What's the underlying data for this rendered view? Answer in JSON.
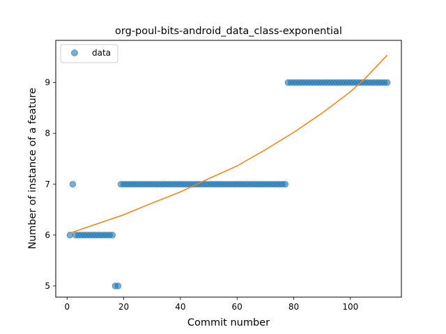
{
  "chart_data": {
    "type": "scatter",
    "title": "org-poul-bits-android_data_class-exponential",
    "xlabel": "Commit number",
    "ylabel": "Number of instance of a feature",
    "xlim": [
      -4,
      118
    ],
    "ylim": [
      4.78,
      9.83
    ],
    "xticks": [
      0,
      20,
      40,
      60,
      80,
      100
    ],
    "yticks": [
      5,
      6,
      7,
      8,
      9
    ],
    "legend": {
      "position": "top-left",
      "entries": [
        {
          "label": "data",
          "color": "#1f77b4",
          "marker": "circle"
        }
      ]
    },
    "series": [
      {
        "name": "data",
        "kind": "scatter",
        "color": "#1f77b4",
        "points": [
          [
            1,
            6
          ],
          [
            2,
            7
          ],
          [
            3,
            6
          ],
          [
            4,
            6
          ],
          [
            5,
            6
          ],
          [
            6,
            6
          ],
          [
            7,
            6
          ],
          [
            8,
            6
          ],
          [
            9,
            6
          ],
          [
            10,
            6
          ],
          [
            11,
            6
          ],
          [
            12,
            6
          ],
          [
            13,
            6
          ],
          [
            14,
            6
          ],
          [
            15,
            6
          ],
          [
            16,
            6
          ],
          [
            17,
            5
          ],
          [
            18,
            5
          ],
          [
            19,
            7
          ],
          [
            20,
            7
          ],
          [
            21,
            7
          ],
          [
            22,
            7
          ],
          [
            23,
            7
          ],
          [
            24,
            7
          ],
          [
            25,
            7
          ],
          [
            26,
            7
          ],
          [
            27,
            7
          ],
          [
            28,
            7
          ],
          [
            29,
            7
          ],
          [
            30,
            7
          ],
          [
            31,
            7
          ],
          [
            32,
            7
          ],
          [
            33,
            7
          ],
          [
            34,
            7
          ],
          [
            35,
            7
          ],
          [
            36,
            7
          ],
          [
            37,
            7
          ],
          [
            38,
            7
          ],
          [
            39,
            7
          ],
          [
            40,
            7
          ],
          [
            41,
            7
          ],
          [
            42,
            7
          ],
          [
            43,
            7
          ],
          [
            44,
            7
          ],
          [
            45,
            7
          ],
          [
            46,
            7
          ],
          [
            47,
            7
          ],
          [
            48,
            7
          ],
          [
            49,
            7
          ],
          [
            50,
            7
          ],
          [
            51,
            7
          ],
          [
            52,
            7
          ],
          [
            53,
            7
          ],
          [
            54,
            7
          ],
          [
            55,
            7
          ],
          [
            56,
            7
          ],
          [
            57,
            7
          ],
          [
            58,
            7
          ],
          [
            59,
            7
          ],
          [
            60,
            7
          ],
          [
            61,
            7
          ],
          [
            62,
            7
          ],
          [
            63,
            7
          ],
          [
            64,
            7
          ],
          [
            65,
            7
          ],
          [
            66,
            7
          ],
          [
            67,
            7
          ],
          [
            68,
            7
          ],
          [
            69,
            7
          ],
          [
            70,
            7
          ],
          [
            71,
            7
          ],
          [
            72,
            7
          ],
          [
            73,
            7
          ],
          [
            74,
            7
          ],
          [
            75,
            7
          ],
          [
            76,
            7
          ],
          [
            77,
            7
          ],
          [
            78,
            9
          ],
          [
            79,
            9
          ],
          [
            80,
            9
          ],
          [
            81,
            9
          ],
          [
            82,
            9
          ],
          [
            83,
            9
          ],
          [
            84,
            9
          ],
          [
            85,
            9
          ],
          [
            86,
            9
          ],
          [
            87,
            9
          ],
          [
            88,
            9
          ],
          [
            89,
            9
          ],
          [
            90,
            9
          ],
          [
            91,
            9
          ],
          [
            92,
            9
          ],
          [
            93,
            9
          ],
          [
            94,
            9
          ],
          [
            95,
            9
          ],
          [
            96,
            9
          ],
          [
            97,
            9
          ],
          [
            98,
            9
          ],
          [
            99,
            9
          ],
          [
            100,
            9
          ],
          [
            101,
            9
          ],
          [
            102,
            9
          ],
          [
            103,
            9
          ],
          [
            104,
            9
          ],
          [
            105,
            9
          ],
          [
            106,
            9
          ],
          [
            107,
            9
          ],
          [
            108,
            9
          ],
          [
            109,
            9
          ],
          [
            110,
            9
          ],
          [
            111,
            9
          ],
          [
            112,
            9
          ],
          [
            113,
            9
          ]
        ]
      },
      {
        "kind": "line",
        "color": "#ff7f0e",
        "points": [
          [
            1,
            6.04
          ],
          [
            10,
            6.21
          ],
          [
            20,
            6.4
          ],
          [
            30,
            6.63
          ],
          [
            40,
            6.85
          ],
          [
            48,
            7.06
          ],
          [
            60,
            7.36
          ],
          [
            70,
            7.68
          ],
          [
            80,
            8.02
          ],
          [
            90,
            8.4
          ],
          [
            100,
            8.82
          ],
          [
            105,
            9.07
          ],
          [
            113,
            9.54
          ]
        ]
      }
    ]
  }
}
